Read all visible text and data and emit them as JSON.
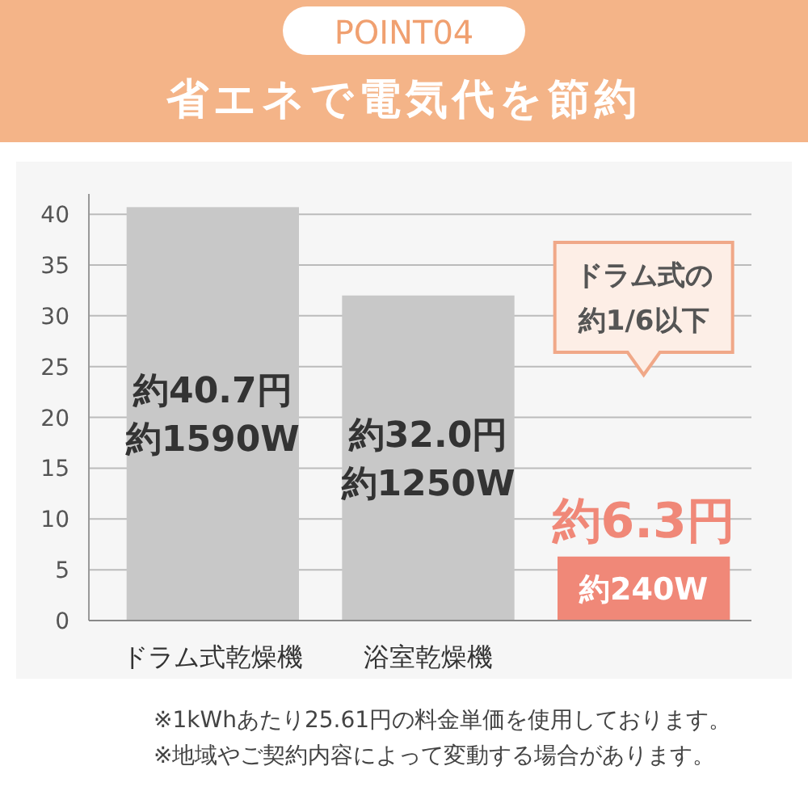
{
  "chart_data": {
    "type": "bar",
    "subtitle": "POINT04",
    "title": "省エネで電気代を節約",
    "categories": [
      "ドラム式乾燥機",
      "浴室乾燥機",
      null
    ],
    "values": [
      40.7,
      32.0,
      6.3
    ],
    "colors": [
      "#c8c8c8",
      "#c8c8c8",
      "#f08878"
    ],
    "value_labels": [
      "約40.7円約1590W",
      "約32.0円約1250W",
      "約6.3円約240W"
    ],
    "ylim": [
      0,
      42
    ],
    "yticks": [
      0,
      5,
      10,
      15,
      20,
      25,
      30,
      35,
      40
    ],
    "grid": "y",
    "annotations": [
      "ドラム式の約1/6以下",
      "※1kWhあたり25.61円の料金単価を使用しております。",
      "※地域やご契約内容によって変動する場合があります。"
    ]
  }
}
